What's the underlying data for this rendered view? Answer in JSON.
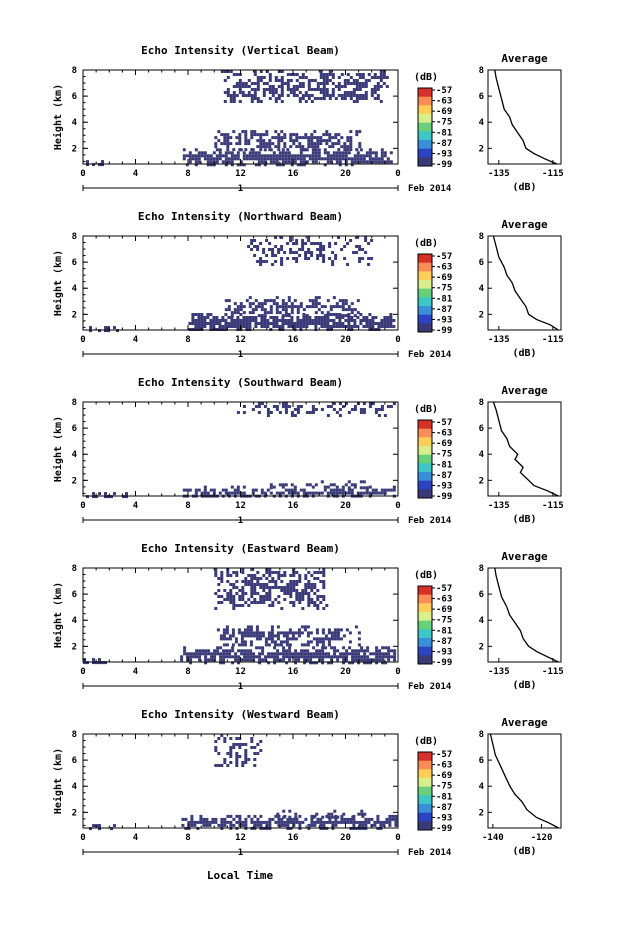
{
  "chart_data": [
    {
      "type": "heatmap",
      "title": "Echo Intensity (Vertical Beam)",
      "ylabel": "Height (km)",
      "xticks": [
        "0",
        "4",
        "8",
        "12",
        "16",
        "20",
        "0"
      ],
      "yticks": [
        "2",
        "4",
        "6",
        "8"
      ],
      "xlim": [
        0,
        24
      ],
      "ylim": [
        0.8,
        8
      ],
      "date_day": "1",
      "date_label": "Feb 2014",
      "colorbar": {
        "unit": "(dB)",
        "ticks": [
          "-57",
          "-63",
          "-69",
          "-75",
          "-81",
          "-87",
          "-93",
          "-99"
        ]
      },
      "echo_regions": [
        {
          "t0": 0.0,
          "t1": 2.1,
          "h0": 0.8,
          "h1": 1.1,
          "density": 1.0
        },
        {
          "t0": 7.6,
          "t1": 23.6,
          "h0": 0.8,
          "h1": 2.0,
          "density": 0.9
        },
        {
          "t0": 10.0,
          "t1": 21.0,
          "h0": 2.0,
          "h1": 3.4,
          "density": 0.7
        },
        {
          "t0": 10.5,
          "t1": 23.2,
          "h0": 5.5,
          "h1": 8.0,
          "density": 0.55
        }
      ],
      "profile": {
        "title": "Average",
        "xlabel": "(dB)",
        "xticks": [
          "-135",
          "-115"
        ],
        "yticks": [
          "2",
          "4",
          "6",
          "8"
        ],
        "xlim": [
          -139,
          -112
        ],
        "ylim": [
          0.8,
          8
        ],
        "points": [
          [
            -113.5,
            0.8
          ],
          [
            -118,
            1.2
          ],
          [
            -122,
            1.6
          ],
          [
            -125,
            2.0
          ],
          [
            -126,
            2.6
          ],
          [
            -128,
            3.2
          ],
          [
            -130,
            3.8
          ],
          [
            -131,
            4.4
          ],
          [
            -133,
            5.0
          ],
          [
            -134,
            5.8
          ],
          [
            -135,
            6.6
          ],
          [
            -136,
            7.4
          ],
          [
            -136.5,
            8.0
          ]
        ]
      }
    },
    {
      "type": "heatmap",
      "title": "Echo Intensity (Northward Beam)",
      "ylabel": "Height (km)",
      "xticks": [
        "0",
        "4",
        "8",
        "12",
        "16",
        "20",
        "0"
      ],
      "yticks": [
        "2",
        "4",
        "6",
        "8"
      ],
      "xlim": [
        0,
        24
      ],
      "ylim": [
        0.8,
        8
      ],
      "date_day": "1",
      "date_label": "Feb 2014",
      "colorbar": {
        "unit": "(dB)",
        "ticks": [
          "-57",
          "-63",
          "-69",
          "-75",
          "-81",
          "-87",
          "-93",
          "-99"
        ]
      },
      "echo_regions": [
        {
          "t0": 0.0,
          "t1": 2.6,
          "h0": 0.8,
          "h1": 1.1,
          "density": 1.0
        },
        {
          "t0": 7.8,
          "t1": 23.8,
          "h0": 0.8,
          "h1": 2.1,
          "density": 0.9
        },
        {
          "t0": 10.8,
          "t1": 21.0,
          "h0": 2.0,
          "h1": 3.4,
          "density": 0.6
        },
        {
          "t0": 12.5,
          "t1": 22.0,
          "h0": 5.8,
          "h1": 8.0,
          "density": 0.4
        }
      ],
      "profile": {
        "title": "Average",
        "xlabel": "(dB)",
        "xticks": [
          "-135",
          "-115"
        ],
        "yticks": [
          "2",
          "4",
          "6",
          "8"
        ],
        "xlim": [
          -139,
          -112
        ],
        "ylim": [
          0.8,
          8
        ],
        "points": [
          [
            -113,
            0.8
          ],
          [
            -116,
            1.2
          ],
          [
            -121,
            1.6
          ],
          [
            -124,
            2.0
          ],
          [
            -125,
            2.6
          ],
          [
            -127,
            3.2
          ],
          [
            -129,
            3.8
          ],
          [
            -130,
            4.4
          ],
          [
            -132,
            5.0
          ],
          [
            -133,
            5.6
          ],
          [
            -135,
            6.4
          ],
          [
            -136,
            7.2
          ],
          [
            -137,
            8.0
          ]
        ]
      }
    },
    {
      "type": "heatmap",
      "title": "Echo Intensity (Southward Beam)",
      "ylabel": "Height (km)",
      "xticks": [
        "0",
        "4",
        "8",
        "12",
        "16",
        "20",
        "0"
      ],
      "yticks": [
        "2",
        "4",
        "6",
        "8"
      ],
      "xlim": [
        0,
        24
      ],
      "ylim": [
        0.8,
        8
      ],
      "date_day": "1",
      "date_label": "Feb 2014",
      "colorbar": {
        "unit": "(dB)",
        "ticks": [
          "-57",
          "-63",
          "-69",
          "-75",
          "-81",
          "-87",
          "-93",
          "-99"
        ]
      },
      "echo_regions": [
        {
          "t0": 0.0,
          "t1": 3.4,
          "h0": 0.8,
          "h1": 1.1,
          "density": 1.0
        },
        {
          "t0": 7.6,
          "t1": 23.9,
          "h0": 0.8,
          "h1": 1.6,
          "density": 0.9
        },
        {
          "t0": 14.0,
          "t1": 22.0,
          "h0": 1.4,
          "h1": 2.0,
          "density": 0.5
        },
        {
          "t0": 11.5,
          "t1": 23.8,
          "h0": 7.0,
          "h1": 8.0,
          "density": 0.35
        }
      ],
      "profile": {
        "title": "Average",
        "xlabel": "(dB)",
        "xticks": [
          "-135",
          "-115"
        ],
        "yticks": [
          "2",
          "4",
          "6",
          "8"
        ],
        "xlim": [
          -139,
          -112
        ],
        "ylim": [
          0.8,
          8
        ],
        "points": [
          [
            -113,
            0.8
          ],
          [
            -117,
            1.2
          ],
          [
            -122,
            1.6
          ],
          [
            -124,
            2.0
          ],
          [
            -127,
            2.6
          ],
          [
            -126,
            3.0
          ],
          [
            -129,
            3.6
          ],
          [
            -128,
            4.0
          ],
          [
            -131,
            4.6
          ],
          [
            -132,
            5.2
          ],
          [
            -134,
            5.8
          ],
          [
            -135,
            6.6
          ],
          [
            -136,
            7.4
          ],
          [
            -137,
            8.0
          ]
        ]
      }
    },
    {
      "type": "heatmap",
      "title": "Echo Intensity (Eastward Beam)",
      "ylabel": "Height (km)",
      "xticks": [
        "0",
        "4",
        "8",
        "12",
        "16",
        "20",
        "0"
      ],
      "yticks": [
        "2",
        "4",
        "6",
        "8"
      ],
      "xlim": [
        0,
        24
      ],
      "ylim": [
        0.8,
        8
      ],
      "date_day": "1",
      "date_label": "Feb 2014",
      "colorbar": {
        "unit": "(dB)",
        "ticks": [
          "-57",
          "-63",
          "-69",
          "-75",
          "-81",
          "-87",
          "-93",
          "-99"
        ]
      },
      "echo_regions": [
        {
          "t0": 0.0,
          "t1": 1.8,
          "h0": 0.8,
          "h1": 1.1,
          "density": 1.0
        },
        {
          "t0": 7.4,
          "t1": 23.8,
          "h0": 0.8,
          "h1": 2.0,
          "density": 0.9
        },
        {
          "t0": 10.2,
          "t1": 21.0,
          "h0": 2.0,
          "h1": 3.6,
          "density": 0.6
        },
        {
          "t0": 10.0,
          "t1": 18.5,
          "h0": 5.0,
          "h1": 8.0,
          "density": 0.55
        }
      ],
      "profile": {
        "title": "Average",
        "xlabel": "(dB)",
        "xticks": [
          "-135",
          "-115"
        ],
        "yticks": [
          "2",
          "4",
          "6",
          "8"
        ],
        "xlim": [
          -139,
          -112
        ],
        "ylim": [
          0.8,
          8
        ],
        "points": [
          [
            -113,
            0.8
          ],
          [
            -117,
            1.2
          ],
          [
            -121,
            1.6
          ],
          [
            -124,
            2.0
          ],
          [
            -126,
            2.6
          ],
          [
            -127,
            3.2
          ],
          [
            -129,
            3.8
          ],
          [
            -131,
            4.4
          ],
          [
            -132,
            5.0
          ],
          [
            -134,
            5.8
          ],
          [
            -135,
            6.6
          ],
          [
            -136,
            7.4
          ],
          [
            -136.5,
            8.0
          ]
        ]
      }
    },
    {
      "type": "heatmap",
      "title": "Echo Intensity (Westward Beam)",
      "ylabel": "Height (km)",
      "xticks": [
        "0",
        "4",
        "8",
        "12",
        "16",
        "20",
        "0"
      ],
      "yticks": [
        "2",
        "4",
        "6",
        "8"
      ],
      "xlim": [
        0,
        24
      ],
      "ylim": [
        0.8,
        8
      ],
      "date_day": "1",
      "date_label": "Feb 2014",
      "colorbar": {
        "unit": "(dB)",
        "ticks": [
          "-57",
          "-63",
          "-69",
          "-75",
          "-81",
          "-87",
          "-93",
          "-99"
        ]
      },
      "echo_regions": [
        {
          "t0": 0.0,
          "t1": 2.5,
          "h0": 0.8,
          "h1": 1.1,
          "density": 1.0
        },
        {
          "t0": 7.5,
          "t1": 23.9,
          "h0": 0.8,
          "h1": 1.8,
          "density": 0.9
        },
        {
          "t0": 14.5,
          "t1": 22.0,
          "h0": 1.6,
          "h1": 2.2,
          "density": 0.45
        },
        {
          "t0": 10.0,
          "t1": 13.5,
          "h0": 5.5,
          "h1": 8.0,
          "density": 0.4
        }
      ],
      "profile": {
        "title": "Average",
        "xlabel": "(dB)",
        "xticks": [
          "-140",
          "-120"
        ],
        "yticks": [
          "2",
          "4",
          "6",
          "8"
        ],
        "xlim": [
          -142,
          -112
        ],
        "ylim": [
          0.8,
          8
        ],
        "points": [
          [
            -113,
            0.8
          ],
          [
            -117,
            1.2
          ],
          [
            -122,
            1.6
          ],
          [
            -126,
            2.2
          ],
          [
            -128,
            2.8
          ],
          [
            -131,
            3.4
          ],
          [
            -133,
            4.0
          ],
          [
            -135,
            4.8
          ],
          [
            -137,
            5.6
          ],
          [
            -139,
            6.4
          ],
          [
            -140,
            7.2
          ],
          [
            -141,
            8.0
          ]
        ]
      }
    }
  ],
  "common_xlabel": "Local Time"
}
